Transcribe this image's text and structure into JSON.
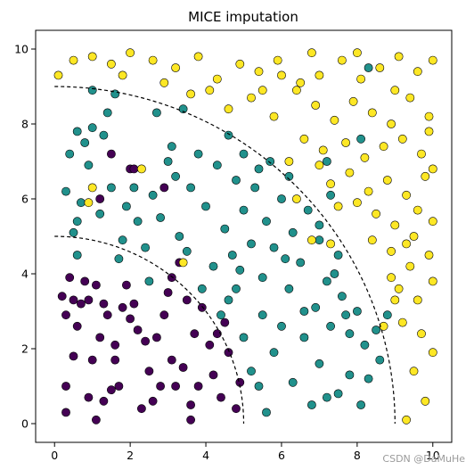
{
  "chart_data": {
    "type": "scatter",
    "title": "MICE imputation",
    "xlabel": "",
    "ylabel": "",
    "xlim": [
      -0.5,
      10.5
    ],
    "ylim": [
      -0.5,
      10.5
    ],
    "xticks": [
      0,
      2,
      4,
      6,
      8,
      10
    ],
    "yticks": [
      0,
      2,
      4,
      6,
      8,
      10
    ],
    "grid": false,
    "colors": {
      "class0": "#440154",
      "class1": "#21918c",
      "class2": "#fde725",
      "edge": "#000000",
      "boundary": "#000000"
    },
    "boundaries": [
      {
        "shape": "quarter-circle",
        "center": [
          0,
          0
        ],
        "radius": 5,
        "style": "dashed"
      },
      {
        "shape": "quarter-circle",
        "center": [
          0,
          0
        ],
        "radius": 9,
        "style": "dashed"
      }
    ],
    "series": [
      {
        "values": [
          [
            0.2,
            3.4
          ],
          [
            0.3,
            2.9
          ],
          [
            0.4,
            3.9
          ],
          [
            0.5,
            3.3
          ],
          [
            0.3,
            1.0
          ],
          [
            0.3,
            0.3
          ],
          [
            0.6,
            2.6
          ],
          [
            0.9,
            3.3
          ],
          [
            0.8,
            3.8
          ],
          [
            1.1,
            3.7
          ],
          [
            1.3,
            3.2
          ],
          [
            1.2,
            2.3
          ],
          [
            1.0,
            1.7
          ],
          [
            0.9,
            0.7
          ],
          [
            1.5,
            0.9
          ],
          [
            1.6,
            1.7
          ],
          [
            1.4,
            2.9
          ],
          [
            1.8,
            3.1
          ],
          [
            1.9,
            3.7
          ],
          [
            2.1,
            3.2
          ],
          [
            2.2,
            2.5
          ],
          [
            2.4,
            2.2
          ],
          [
            2.5,
            1.4
          ],
          [
            2.6,
            0.6
          ],
          [
            2.8,
            1.0
          ],
          [
            2.9,
            2.9
          ],
          [
            3.0,
            3.5
          ],
          [
            3.1,
            3.9
          ],
          [
            3.3,
            4.3
          ],
          [
            3.5,
            3.3
          ],
          [
            3.1,
            1.7
          ],
          [
            3.4,
            1.5
          ],
          [
            3.6,
            0.5
          ],
          [
            3.7,
            2.4
          ],
          [
            3.8,
            1.0
          ],
          [
            3.9,
            3.1
          ],
          [
            4.1,
            2.1
          ],
          [
            4.2,
            1.3
          ],
          [
            4.4,
            0.7
          ],
          [
            4.6,
            1.9
          ],
          [
            4.8,
            0.4
          ],
          [
            4.5,
            2.7
          ],
          [
            4.9,
            1.1
          ],
          [
            3.6,
            0.1
          ],
          [
            2.3,
            0.4
          ],
          [
            1.1,
            0.1
          ],
          [
            2.7,
            2.3
          ],
          [
            1.6,
            2.1
          ],
          [
            2.0,
            6.8
          ],
          [
            2.9,
            6.3
          ],
          [
            1.2,
            6.0
          ],
          [
            2.1,
            6.8
          ],
          [
            1.5,
            7.2
          ],
          [
            0.7,
            3.2
          ],
          [
            1.7,
            1.0
          ],
          [
            2.0,
            2.8
          ],
          [
            3.2,
            1.0
          ],
          [
            4.3,
            2.4
          ],
          [
            0.5,
            1.8
          ],
          [
            1.3,
            0.6
          ]
        ]
      },
      {
        "values": [
          [
            0.3,
            6.2
          ],
          [
            0.4,
            7.2
          ],
          [
            0.5,
            5.1
          ],
          [
            0.6,
            4.5
          ],
          [
            0.7,
            5.9
          ],
          [
            0.9,
            6.9
          ],
          [
            1.0,
            7.9
          ],
          [
            1.2,
            5.6
          ],
          [
            1.5,
            6.3
          ],
          [
            1.7,
            4.4
          ],
          [
            1.9,
            5.8
          ],
          [
            2.2,
            5.4
          ],
          [
            2.4,
            4.7
          ],
          [
            2.6,
            6.1
          ],
          [
            2.8,
            5.5
          ],
          [
            3.0,
            7.0
          ],
          [
            3.2,
            6.6
          ],
          [
            3.3,
            5.0
          ],
          [
            3.5,
            4.6
          ],
          [
            3.6,
            6.3
          ],
          [
            3.8,
            7.2
          ],
          [
            4.0,
            5.8
          ],
          [
            4.2,
            4.2
          ],
          [
            4.3,
            6.9
          ],
          [
            4.5,
            5.2
          ],
          [
            4.7,
            4.5
          ],
          [
            4.8,
            6.5
          ],
          [
            5.0,
            5.7
          ],
          [
            5.2,
            4.8
          ],
          [
            5.3,
            6.3
          ],
          [
            5.5,
            3.9
          ],
          [
            5.6,
            5.4
          ],
          [
            5.8,
            4.7
          ],
          [
            6.0,
            6.0
          ],
          [
            6.2,
            3.6
          ],
          [
            6.3,
            5.1
          ],
          [
            6.5,
            4.3
          ],
          [
            6.7,
            5.7
          ],
          [
            6.9,
            3.1
          ],
          [
            7.0,
            4.9
          ],
          [
            7.2,
            3.8
          ],
          [
            7.3,
            2.6
          ],
          [
            7.5,
            4.5
          ],
          [
            7.6,
            3.4
          ],
          [
            7.8,
            2.4
          ],
          [
            8.0,
            3.0
          ],
          [
            8.2,
            2.1
          ],
          [
            8.3,
            1.2
          ],
          [
            8.5,
            2.5
          ],
          [
            8.6,
            1.7
          ],
          [
            6.0,
            2.6
          ],
          [
            5.8,
            1.9
          ],
          [
            5.5,
            2.9
          ],
          [
            5.2,
            1.4
          ],
          [
            5.0,
            2.3
          ],
          [
            4.8,
            3.6
          ],
          [
            4.6,
            3.3
          ],
          [
            4.4,
            2.9
          ],
          [
            6.3,
            1.1
          ],
          [
            6.6,
            2.3
          ],
          [
            7.0,
            1.6
          ],
          [
            7.2,
            0.7
          ],
          [
            7.5,
            0.8
          ],
          [
            7.8,
            1.3
          ],
          [
            8.1,
            0.5
          ],
          [
            6.8,
            0.5
          ],
          [
            5.6,
            0.3
          ],
          [
            5.4,
            1.0
          ],
          [
            0.6,
            7.8
          ],
          [
            1.0,
            8.9
          ],
          [
            1.4,
            8.3
          ],
          [
            2.1,
            6.3
          ],
          [
            3.1,
            7.4
          ],
          [
            4.6,
            7.7
          ],
          [
            5.0,
            7.2
          ],
          [
            5.4,
            6.8
          ],
          [
            7.0,
            5.3
          ],
          [
            7.3,
            6.1
          ],
          [
            8.1,
            7.6
          ],
          [
            8.3,
            9.5
          ],
          [
            7.2,
            7.0
          ],
          [
            6.2,
            6.6
          ],
          [
            2.7,
            8.3
          ],
          [
            1.3,
            7.7
          ],
          [
            0.8,
            7.5
          ],
          [
            1.8,
            4.9
          ],
          [
            2.5,
            3.8
          ],
          [
            3.9,
            3.6
          ],
          [
            6.1,
            4.4
          ],
          [
            7.7,
            2.9
          ],
          [
            8.8,
            2.9
          ],
          [
            7.4,
            4.0
          ],
          [
            3.4,
            8.4
          ],
          [
            5.7,
            7.0
          ],
          [
            1.6,
            8.8
          ],
          [
            0.6,
            5.4
          ],
          [
            6.6,
            3.0
          ],
          [
            4.9,
            4.1
          ]
        ]
      },
      {
        "values": [
          [
            0.1,
            9.3
          ],
          [
            0.5,
            9.7
          ],
          [
            1.0,
            9.8
          ],
          [
            1.5,
            9.6
          ],
          [
            2.0,
            9.9
          ],
          [
            2.6,
            9.7
          ],
          [
            3.2,
            9.5
          ],
          [
            3.8,
            9.8
          ],
          [
            4.3,
            9.2
          ],
          [
            4.9,
            9.6
          ],
          [
            5.4,
            9.4
          ],
          [
            5.9,
            9.7
          ],
          [
            6.5,
            9.1
          ],
          [
            7.0,
            9.3
          ],
          [
            7.6,
            9.7
          ],
          [
            8.1,
            9.2
          ],
          [
            8.6,
            9.5
          ],
          [
            9.1,
            9.8
          ],
          [
            9.6,
            9.4
          ],
          [
            10.0,
            9.7
          ],
          [
            4.6,
            8.4
          ],
          [
            5.2,
            8.7
          ],
          [
            5.8,
            8.2
          ],
          [
            6.4,
            8.9
          ],
          [
            6.9,
            8.5
          ],
          [
            7.4,
            8.1
          ],
          [
            7.9,
            8.6
          ],
          [
            8.4,
            8.3
          ],
          [
            8.9,
            8.0
          ],
          [
            9.4,
            8.7
          ],
          [
            9.9,
            8.2
          ],
          [
            6.6,
            7.6
          ],
          [
            7.1,
            7.3
          ],
          [
            7.7,
            7.5
          ],
          [
            8.2,
            7.1
          ],
          [
            8.7,
            7.4
          ],
          [
            9.2,
            7.6
          ],
          [
            9.7,
            7.2
          ],
          [
            7.3,
            6.4
          ],
          [
            7.8,
            6.7
          ],
          [
            8.3,
            6.2
          ],
          [
            8.8,
            6.5
          ],
          [
            9.3,
            6.1
          ],
          [
            9.8,
            6.6
          ],
          [
            8.5,
            5.6
          ],
          [
            9.0,
            5.3
          ],
          [
            9.5,
            5.0
          ],
          [
            10.0,
            5.4
          ],
          [
            8.9,
            4.6
          ],
          [
            9.4,
            4.2
          ],
          [
            9.9,
            4.5
          ],
          [
            9.1,
            3.6
          ],
          [
            9.6,
            3.3
          ],
          [
            10.0,
            3.8
          ],
          [
            9.2,
            2.7
          ],
          [
            9.7,
            2.4
          ],
          [
            10.0,
            1.9
          ],
          [
            9.5,
            1.4
          ],
          [
            9.8,
            0.6
          ],
          [
            9.3,
            0.1
          ],
          [
            3.6,
            8.8
          ],
          [
            4.1,
            8.9
          ],
          [
            2.9,
            9.1
          ],
          [
            1.8,
            9.3
          ],
          [
            5.5,
            8.9
          ],
          [
            6.0,
            9.3
          ],
          [
            6.8,
            9.9
          ],
          [
            8.0,
            9.9
          ],
          [
            9.0,
            8.9
          ],
          [
            9.9,
            7.8
          ],
          [
            10.0,
            6.8
          ],
          [
            9.6,
            5.7
          ],
          [
            9.3,
            4.8
          ],
          [
            8.9,
            3.9
          ],
          [
            9.0,
            3.3
          ],
          [
            8.7,
            2.6
          ],
          [
            7.5,
            5.8
          ],
          [
            7.0,
            6.9
          ],
          [
            8.0,
            5.9
          ],
          [
            8.4,
            4.9
          ],
          [
            6.4,
            6.0
          ],
          [
            6.2,
            7.0
          ],
          [
            7.3,
            4.8
          ],
          [
            6.8,
            4.9
          ],
          [
            3.4,
            4.3
          ],
          [
            1.0,
            6.3
          ],
          [
            0.9,
            5.9
          ],
          [
            2.3,
            6.8
          ]
        ]
      }
    ]
  },
  "watermark": "CSDN @DaMuHe"
}
